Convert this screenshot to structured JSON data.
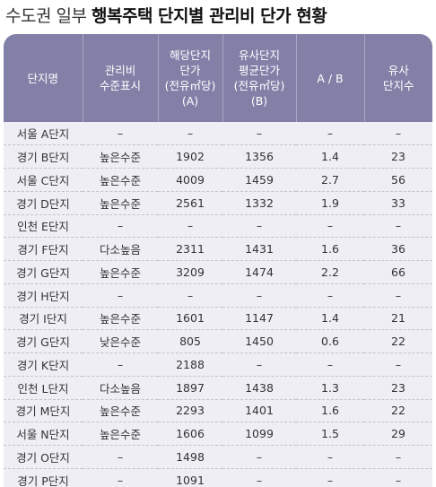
{
  "title": {
    "light": "수도권 일부",
    "bold": "행복주택 단지별 관리비 단가 현황"
  },
  "header": [
    [
      "단지명"
    ],
    [
      "관리비",
      "수준표시"
    ],
    [
      "해당단지",
      "단가",
      "(전유㎡당)",
      "(A)"
    ],
    [
      "유사단지",
      "평균단가",
      "(전유㎡당)",
      "(B)"
    ],
    [
      "A / B"
    ],
    [
      "유사",
      "단지수"
    ]
  ],
  "rows": [
    [
      "서울 A단지",
      "–",
      "–",
      "–",
      "–",
      "–"
    ],
    [
      "경기 B단지",
      "높은수준",
      "1902",
      "1356",
      "1.4",
      "23"
    ],
    [
      "서울 C단지",
      "높은수준",
      "4009",
      "1459",
      "2.7",
      "56"
    ],
    [
      "경기 D단지",
      "높은수준",
      "2561",
      "1332",
      "1.9",
      "33"
    ],
    [
      "인천 E단지",
      "–",
      "–",
      "–",
      "–",
      "–"
    ],
    [
      "경기 F단지",
      "다소높음",
      "2311",
      "1431",
      "1.6",
      "36"
    ],
    [
      "경기 G단지",
      "높은수준",
      "3209",
      "1474",
      "2.2",
      "66"
    ],
    [
      "경기 H단지",
      "–",
      "–",
      "–",
      "–",
      "–"
    ],
    [
      "경기 I단지",
      "높은수준",
      "1601",
      "1147",
      "1.4",
      "21"
    ],
    [
      "경기 G단지",
      "낮은수준",
      "805",
      "1450",
      "0.6",
      "22"
    ],
    [
      "경기 K단지",
      "–",
      "2188",
      "–",
      "–",
      "–"
    ],
    [
      "인천 L단지",
      "다소높음",
      "1897",
      "1438",
      "1.3",
      "23"
    ],
    [
      "경기 M단지",
      "높은수준",
      "2293",
      "1401",
      "1.6",
      "22"
    ],
    [
      "서울 N단지",
      "높은수준",
      "1606",
      "1099",
      "1.5",
      "29"
    ],
    [
      "경기 O단지",
      "–",
      "1498",
      "–",
      "–",
      "–"
    ],
    [
      "경기 P단지",
      "–",
      "1091",
      "–",
      "–",
      "–"
    ]
  ],
  "colors": {
    "header_bg": "#8380a8",
    "body_bg": "#efeef4"
  }
}
